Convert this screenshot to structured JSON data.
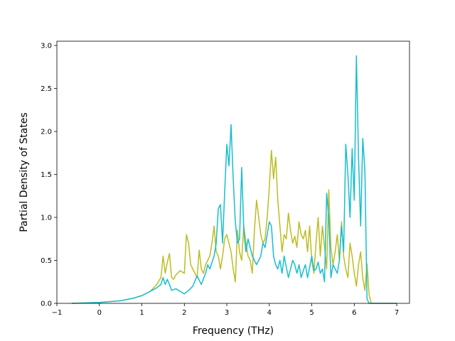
{
  "chart_data": {
    "type": "line",
    "title": "",
    "xlabel": "Frequency (THz)",
    "ylabel": "Partial Density of States",
    "xlim": [
      -1,
      7.3
    ],
    "ylim": [
      0,
      3.05
    ],
    "x_ticks": [
      -1,
      0,
      1,
      2,
      3,
      4,
      5,
      6,
      7
    ],
    "y_ticks": [
      0.0,
      0.5,
      1.0,
      1.5,
      2.0,
      2.5,
      3.0
    ],
    "x_tick_labels": [
      "−1",
      "0",
      "1",
      "2",
      "3",
      "4",
      "5",
      "6",
      "7"
    ],
    "y_tick_labels": [
      "0.0",
      "0.5",
      "1.0",
      "1.5",
      "2.0",
      "2.5",
      "3.0"
    ],
    "grid": false,
    "legend": "none",
    "series": [
      {
        "color": "#bcbd22",
        "x": [
          -0.65,
          0.0,
          0.5,
          0.8,
          1.0,
          1.2,
          1.35,
          1.45,
          1.5,
          1.55,
          1.6,
          1.65,
          1.7,
          1.75,
          1.8,
          1.9,
          2.0,
          2.05,
          2.1,
          2.15,
          2.2,
          2.3,
          2.35,
          2.4,
          2.45,
          2.5,
          2.55,
          2.6,
          2.65,
          2.7,
          2.75,
          2.8,
          2.85,
          2.9,
          2.95,
          3.0,
          3.05,
          3.1,
          3.15,
          3.2,
          3.25,
          3.3,
          3.35,
          3.4,
          3.45,
          3.5,
          3.55,
          3.6,
          3.65,
          3.7,
          3.75,
          3.8,
          3.85,
          3.9,
          3.95,
          4.0,
          4.05,
          4.1,
          4.15,
          4.2,
          4.25,
          4.3,
          4.35,
          4.4,
          4.45,
          4.5,
          4.55,
          4.6,
          4.65,
          4.7,
          4.75,
          4.8,
          4.85,
          4.9,
          4.95,
          5.0,
          5.05,
          5.1,
          5.15,
          5.2,
          5.25,
          5.3,
          5.35,
          5.4,
          5.45,
          5.5,
          5.55,
          5.6,
          5.65,
          5.7,
          5.75,
          5.8,
          5.85,
          5.9,
          5.95,
          6.0,
          6.05,
          6.1,
          6.15,
          6.2,
          6.25,
          6.3,
          6.35,
          6.4,
          7.0
        ],
        "values": [
          0.0,
          0.01,
          0.03,
          0.06,
          0.09,
          0.14,
          0.22,
          0.3,
          0.55,
          0.35,
          0.48,
          0.58,
          0.3,
          0.28,
          0.33,
          0.38,
          0.35,
          0.8,
          0.7,
          0.45,
          0.4,
          0.3,
          0.62,
          0.4,
          0.35,
          0.45,
          0.5,
          0.55,
          0.7,
          0.9,
          0.6,
          0.55,
          0.4,
          0.55,
          0.75,
          0.8,
          0.7,
          0.6,
          0.4,
          0.25,
          0.85,
          0.6,
          0.5,
          0.9,
          0.7,
          0.55,
          0.5,
          0.35,
          0.85,
          1.2,
          1.0,
          0.8,
          0.7,
          0.75,
          1.0,
          1.35,
          1.78,
          1.45,
          1.7,
          1.2,
          0.9,
          0.6,
          0.8,
          0.75,
          1.05,
          0.85,
          0.7,
          0.78,
          0.65,
          0.95,
          0.8,
          0.75,
          0.85,
          0.6,
          0.9,
          0.5,
          0.35,
          0.7,
          1.0,
          0.55,
          0.9,
          0.65,
          0.4,
          1.32,
          0.65,
          0.45,
          0.6,
          0.8,
          0.5,
          0.95,
          0.55,
          0.4,
          0.3,
          0.7,
          0.55,
          0.35,
          0.2,
          0.45,
          0.6,
          0.3,
          0.15,
          0.46,
          0.1,
          0.0,
          0.0
        ]
      },
      {
        "color": "#17becf",
        "x": [
          -0.65,
          0.0,
          0.5,
          0.8,
          1.0,
          1.2,
          1.35,
          1.45,
          1.5,
          1.55,
          1.6,
          1.65,
          1.7,
          1.8,
          1.9,
          2.0,
          2.1,
          2.2,
          2.3,
          2.4,
          2.5,
          2.55,
          2.6,
          2.7,
          2.75,
          2.8,
          2.85,
          2.9,
          2.95,
          3.0,
          3.05,
          3.1,
          3.15,
          3.2,
          3.25,
          3.3,
          3.35,
          3.4,
          3.45,
          3.5,
          3.55,
          3.6,
          3.65,
          3.7,
          3.75,
          3.8,
          3.85,
          3.9,
          3.95,
          4.0,
          4.05,
          4.1,
          4.15,
          4.2,
          4.25,
          4.3,
          4.35,
          4.4,
          4.45,
          4.5,
          4.55,
          4.6,
          4.65,
          4.7,
          4.75,
          4.8,
          4.85,
          4.9,
          4.95,
          5.0,
          5.05,
          5.1,
          5.15,
          5.2,
          5.25,
          5.3,
          5.35,
          5.4,
          5.45,
          5.5,
          5.55,
          5.6,
          5.65,
          5.7,
          5.75,
          5.8,
          5.85,
          5.9,
          5.95,
          6.0,
          6.05,
          6.1,
          6.15,
          6.2,
          6.25,
          6.3,
          6.35,
          6.4,
          7.0
        ],
        "values": [
          0.0,
          0.01,
          0.03,
          0.06,
          0.09,
          0.14,
          0.18,
          0.22,
          0.3,
          0.22,
          0.28,
          0.22,
          0.15,
          0.17,
          0.14,
          0.11,
          0.15,
          0.2,
          0.32,
          0.22,
          0.35,
          0.45,
          0.4,
          0.55,
          0.7,
          1.1,
          1.15,
          0.7,
          1.3,
          1.85,
          1.6,
          2.08,
          1.45,
          0.95,
          0.7,
          0.75,
          1.58,
          0.85,
          0.6,
          0.75,
          0.65,
          0.55,
          0.5,
          0.45,
          0.5,
          0.55,
          0.7,
          0.65,
          0.8,
          0.95,
          0.9,
          0.55,
          0.45,
          0.4,
          0.5,
          0.35,
          0.55,
          0.42,
          0.3,
          0.4,
          0.5,
          0.45,
          0.35,
          0.45,
          0.3,
          0.38,
          0.45,
          0.3,
          0.42,
          0.55,
          0.38,
          0.4,
          0.48,
          0.35,
          0.4,
          0.25,
          1.28,
          1.0,
          0.3,
          0.45,
          0.4,
          0.35,
          0.5,
          0.9,
          0.6,
          1.85,
          1.5,
          1.0,
          1.8,
          1.2,
          2.88,
          1.7,
          0.9,
          1.92,
          1.55,
          0.05,
          0.0,
          0.0,
          0.0
        ]
      }
    ]
  }
}
